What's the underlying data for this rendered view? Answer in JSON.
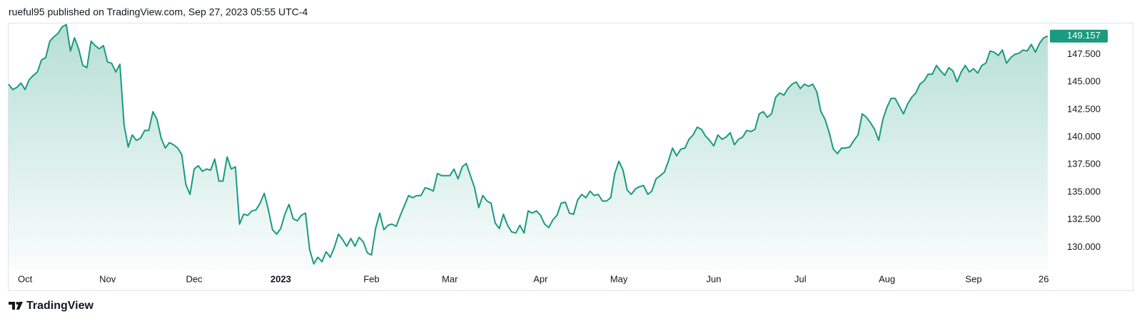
{
  "header": "rueful95 published on TradingView.com, Sep 27, 2023 05:55 UTC-4",
  "footer": "TradingView",
  "chart_data": {
    "type": "area",
    "grid": false,
    "ylim": [
      127.9,
      150.3
    ],
    "yticks": [
      {
        "value": 130,
        "label": "130.000"
      },
      {
        "value": 132.5,
        "label": "132.500"
      },
      {
        "value": 135,
        "label": "135.000"
      },
      {
        "value": 137.5,
        "label": "137.500"
      },
      {
        "value": 140,
        "label": "140.000"
      },
      {
        "value": 142.5,
        "label": "142.500"
      },
      {
        "value": 145,
        "label": "145.000"
      },
      {
        "value": 147.5,
        "label": "147.500"
      }
    ],
    "xlim": [
      0,
      252
    ],
    "xticks": [
      {
        "value": 4,
        "label": "Oct"
      },
      {
        "value": 24,
        "label": "Nov"
      },
      {
        "value": 45,
        "label": "Dec"
      },
      {
        "value": 66,
        "label": "2023"
      },
      {
        "value": 88,
        "label": "Feb"
      },
      {
        "value": 107,
        "label": "Mar"
      },
      {
        "value": 129,
        "label": "Apr"
      },
      {
        "value": 148,
        "label": "May"
      },
      {
        "value": 171,
        "label": "Jun"
      },
      {
        "value": 192,
        "label": "Jul"
      },
      {
        "value": 213,
        "label": "Aug"
      },
      {
        "value": 234,
        "label": "Sep"
      },
      {
        "value": 251,
        "label": "26"
      }
    ],
    "series": [
      {
        "color": "#1a9a7f",
        "values": [
          144.8,
          144.3,
          144.5,
          144.9,
          144.3,
          145.2,
          145.6,
          145.9,
          147.0,
          147.2,
          148.7,
          149.1,
          149.4,
          150.0,
          150.2,
          147.8,
          149.0,
          148.0,
          146.5,
          146.3,
          148.7,
          148.3,
          148.0,
          148.3,
          146.8,
          146.7,
          145.9,
          146.6,
          141.1,
          139.1,
          140.2,
          139.7,
          139.9,
          140.6,
          140.6,
          142.3,
          141.6,
          139.9,
          139.0,
          139.5,
          139.3,
          139.0,
          138.4,
          135.7,
          134.8,
          137.1,
          137.4,
          136.9,
          137.1,
          137.0,
          138.0,
          136.0,
          136.0,
          138.2,
          137.1,
          137.3,
          132.1,
          133.0,
          132.9,
          133.3,
          133.4,
          134.0,
          134.9,
          133.4,
          131.6,
          131.2,
          131.7,
          133.0,
          133.9,
          132.6,
          132.4,
          132.9,
          133.1,
          129.8,
          128.5,
          129.1,
          128.7,
          129.6,
          129.1,
          130.0,
          131.2,
          130.7,
          130.1,
          130.8,
          130.1,
          130.9,
          130.5,
          129.5,
          129.3,
          131.7,
          133.1,
          131.6,
          132.0,
          132.1,
          131.9,
          132.9,
          133.8,
          134.7,
          134.5,
          134.7,
          134.7,
          135.4,
          135.3,
          135.1,
          136.7,
          136.5,
          136.5,
          136.5,
          137.1,
          136.2,
          137.3,
          137.6,
          136.5,
          135.4,
          133.6,
          134.7,
          134.2,
          134.0,
          132.2,
          131.7,
          133.0,
          132.0,
          131.4,
          131.3,
          132.0,
          131.3,
          133.3,
          133.1,
          133.3,
          132.9,
          132.1,
          131.8,
          132.5,
          132.9,
          134.0,
          134.1,
          133.1,
          133.0,
          134.3,
          134.8,
          134.5,
          135.1,
          134.7,
          134.8,
          134.2,
          134.2,
          134.5,
          136.7,
          137.8,
          137.0,
          135.2,
          134.8,
          135.3,
          135.5,
          135.6,
          134.8,
          135.1,
          136.2,
          136.5,
          136.8,
          137.8,
          139.0,
          138.3,
          138.9,
          139.0,
          139.8,
          140.2,
          140.9,
          140.7,
          140.1,
          139.7,
          139.2,
          140.2,
          139.8,
          140.0,
          140.4,
          139.3,
          139.8,
          140.0,
          140.6,
          140.5,
          140.7,
          142.1,
          142.3,
          141.8,
          142.1,
          143.6,
          144.0,
          143.8,
          144.4,
          144.8,
          145.0,
          144.4,
          144.8,
          144.6,
          144.8,
          144.1,
          142.3,
          141.6,
          140.4,
          138.9,
          138.5,
          139.0,
          139.0,
          139.1,
          139.7,
          140.2,
          142.1,
          141.8,
          141.3,
          140.7,
          139.7,
          141.6,
          142.7,
          143.5,
          143.5,
          142.8,
          142.1,
          143.0,
          143.6,
          144.0,
          144.8,
          145.1,
          145.7,
          145.7,
          146.5,
          146.0,
          145.6,
          146.3,
          146.0,
          145.0,
          145.9,
          146.5,
          145.9,
          146.2,
          145.8,
          146.5,
          146.7,
          147.8,
          147.7,
          147.4,
          147.9,
          146.7,
          147.2,
          147.5,
          147.6,
          147.9,
          147.8,
          148.4,
          147.7,
          148.5,
          149.0,
          149.157
        ]
      }
    ]
  }
}
